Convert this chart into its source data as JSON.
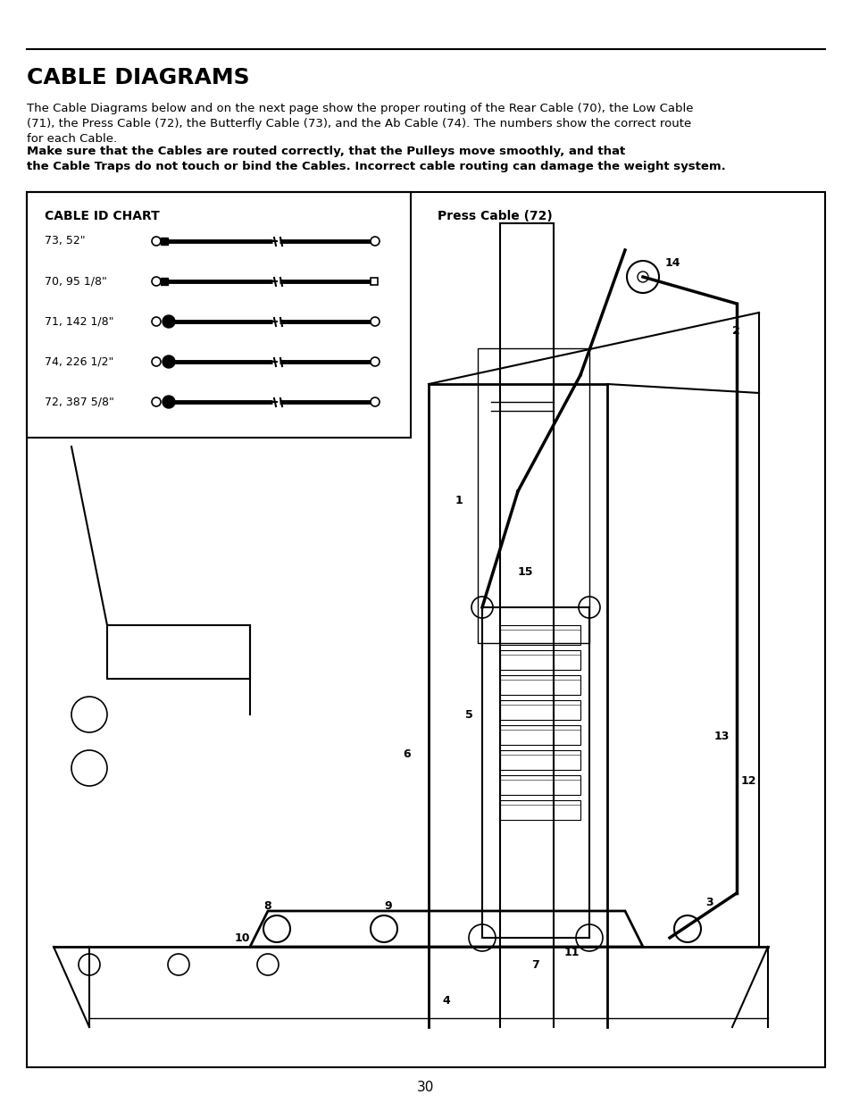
{
  "title": "CABLE DIAGRAMS",
  "page_number": "30",
  "body_text_normal": "The Cable Diagrams below and on the next page show the proper routing of the Rear Cable (70), the Low Cable (71), the Press Cable (72), the Butterfly Cable (73), and the Ab Cable (74). The numbers show the correct route for each Cable. ",
  "body_text_bold": "Make sure that the Cables are routed correctly, that the Pulleys move smoothly, and that the Cable Traps do not touch or bind the Cables. Incorrect cable routing can damage the weight system.",
  "cable_id_chart_title": "CABLE ID CHART",
  "press_cable_label": "Press Cable (72)",
  "cable_entries": [
    {
      "label": "73, 52\"",
      "has_filled_dot": false
    },
    {
      "label": "70, 95 1/8\"",
      "has_filled_dot": false
    },
    {
      "label": "71, 142 1/8\"",
      "has_filled_dot": true
    },
    {
      "label": "74, 226 1/2\"",
      "has_filled_dot": true
    },
    {
      "label": "72, 387 5/8\"",
      "has_filled_dot": true
    }
  ],
  "numbered_labels": [
    "1",
    "2",
    "3",
    "4",
    "5",
    "6",
    "7",
    "8",
    "9",
    "10",
    "11",
    "12",
    "13",
    "14",
    "15"
  ],
  "bg_color": "#ffffff",
  "text_color": "#000000",
  "border_color": "#000000",
  "figsize": [
    9.54,
    12.35
  ],
  "dpi": 100
}
